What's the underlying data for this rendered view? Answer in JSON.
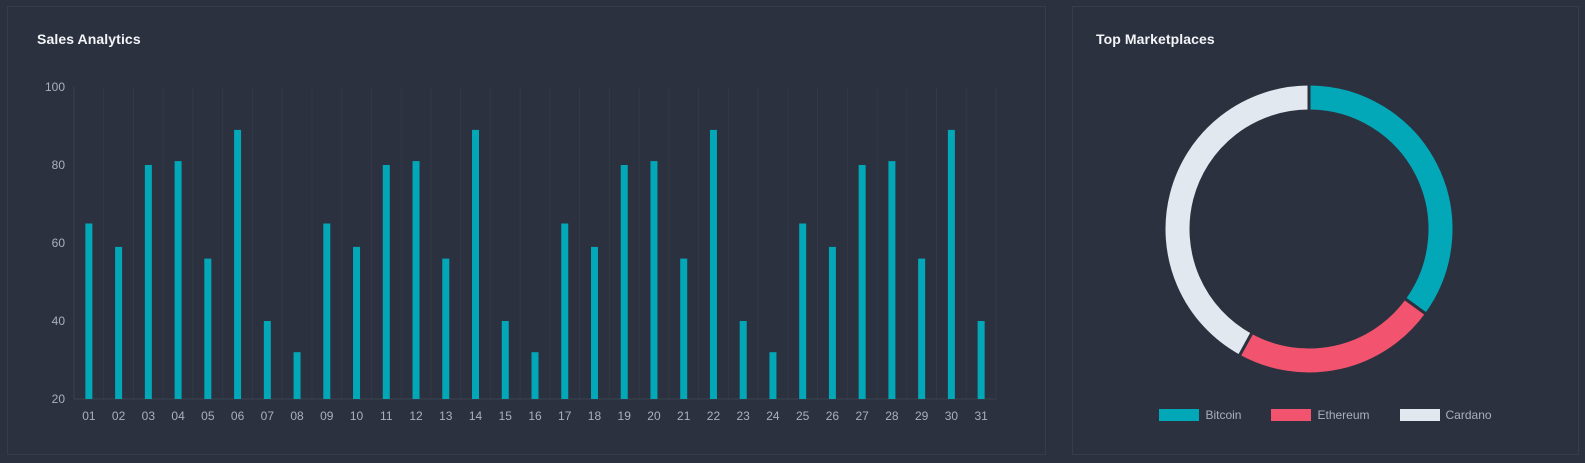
{
  "sales": {
    "title": "Sales Analytics"
  },
  "marketplaces": {
    "title": "Top Marketplaces"
  },
  "chart_data": [
    {
      "type": "bar",
      "title": "Sales Analytics",
      "categories": [
        "01",
        "02",
        "03",
        "04",
        "05",
        "06",
        "07",
        "08",
        "09",
        "10",
        "11",
        "12",
        "13",
        "14",
        "15",
        "16",
        "17",
        "18",
        "19",
        "20",
        "21",
        "22",
        "23",
        "24",
        "25",
        "26",
        "27",
        "28",
        "29",
        "30",
        "31"
      ],
      "values": [
        65,
        59,
        80,
        81,
        56,
        89,
        40,
        32,
        65,
        59,
        80,
        81,
        56,
        89,
        40,
        32,
        65,
        59,
        80,
        81,
        56,
        89,
        40,
        32,
        65,
        59,
        80,
        81,
        56,
        89,
        40
      ],
      "ylim": [
        20,
        100
      ],
      "yticks": [
        20,
        40,
        60,
        80,
        100
      ],
      "grid": true,
      "color": "#03a8b8"
    },
    {
      "type": "pie",
      "title": "Top Marketplaces",
      "donut": true,
      "labels": [
        "Bitcoin",
        "Ethereum",
        "Cardano"
      ],
      "values": [
        35,
        23,
        42
      ],
      "colors": [
        "#03a8b8",
        "#f2536e",
        "#e2e8ef"
      ],
      "legend": "bottom"
    }
  ]
}
